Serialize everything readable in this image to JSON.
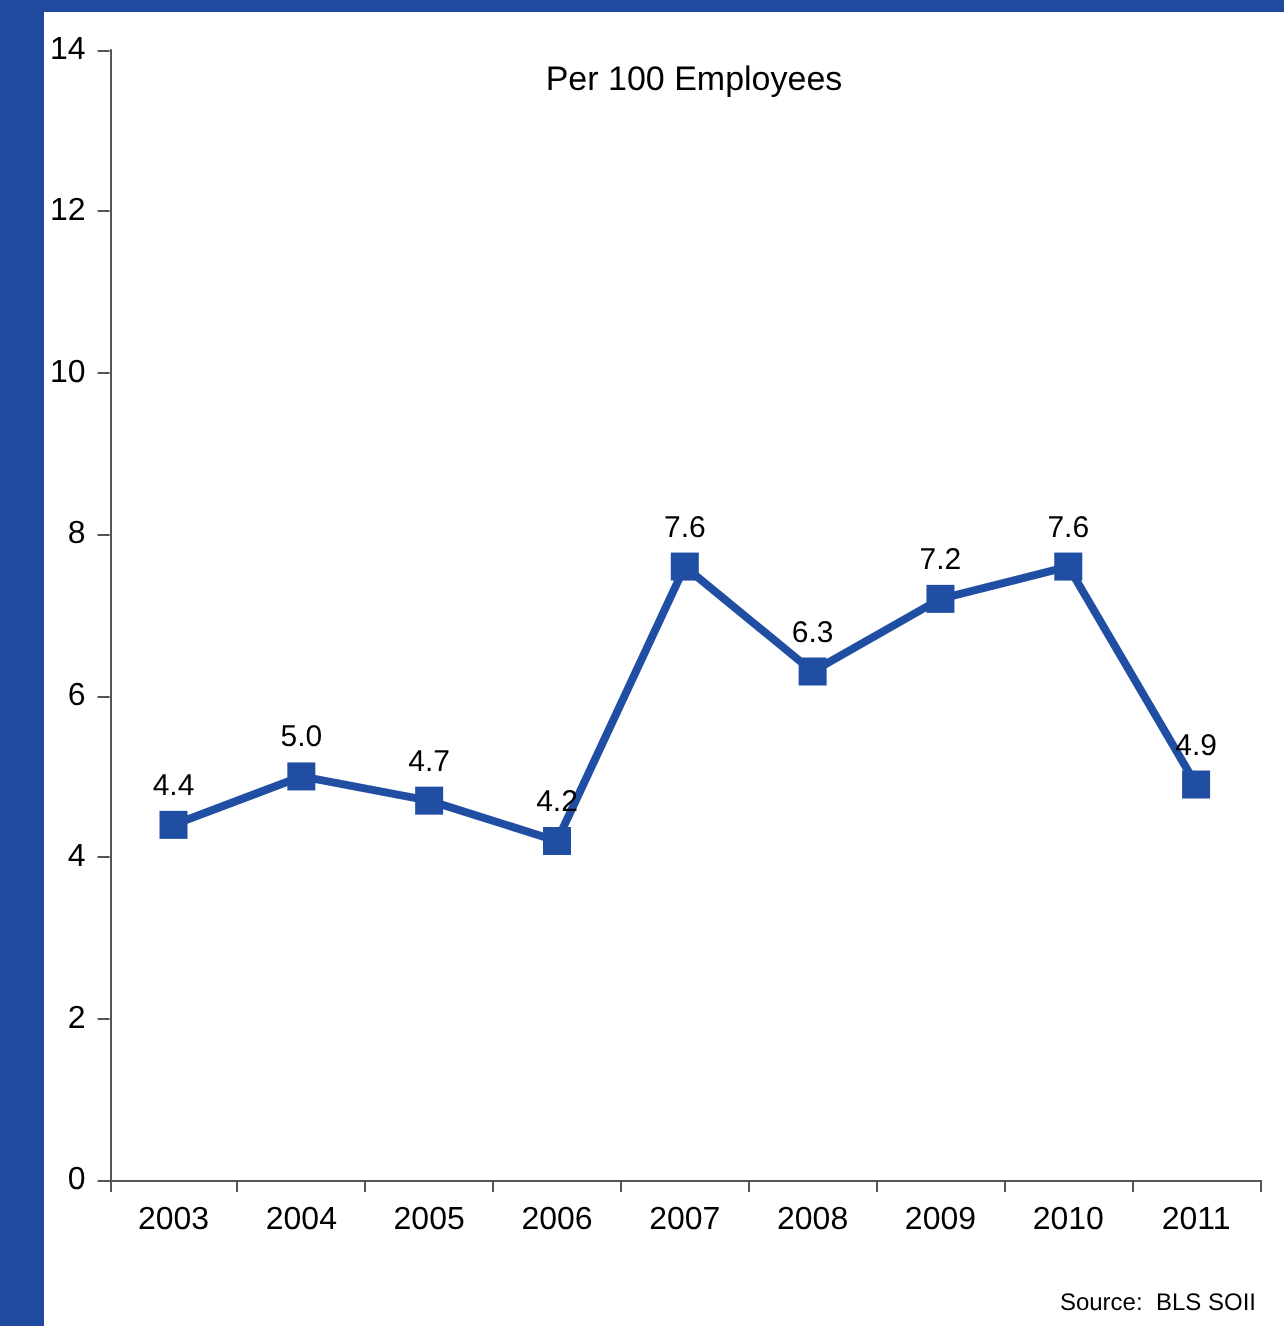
{
  "chart_data": {
    "type": "line",
    "title": "Per 100 Employees",
    "categories": [
      "2003",
      "2004",
      "2005",
      "2006",
      "2007",
      "2008",
      "2009",
      "2010",
      "2011"
    ],
    "series": [
      {
        "color": "#1f4ea3",
        "values": [
          4.4,
          5.0,
          4.7,
          4.2,
          7.6,
          6.3,
          7.2,
          7.6,
          4.9
        ],
        "value_labels": [
          "4.4",
          "5.0",
          "4.7",
          "4.2",
          "7.6",
          "6.3",
          "7.2",
          "7.6",
          "4.9"
        ]
      }
    ],
    "ylim": [
      0,
      14
    ],
    "yticks": [
      0,
      2,
      4,
      6,
      8,
      10,
      12,
      14
    ],
    "marker": "square",
    "line_style": "solid",
    "annotations": [
      "Source:  BLS SOII"
    ]
  }
}
